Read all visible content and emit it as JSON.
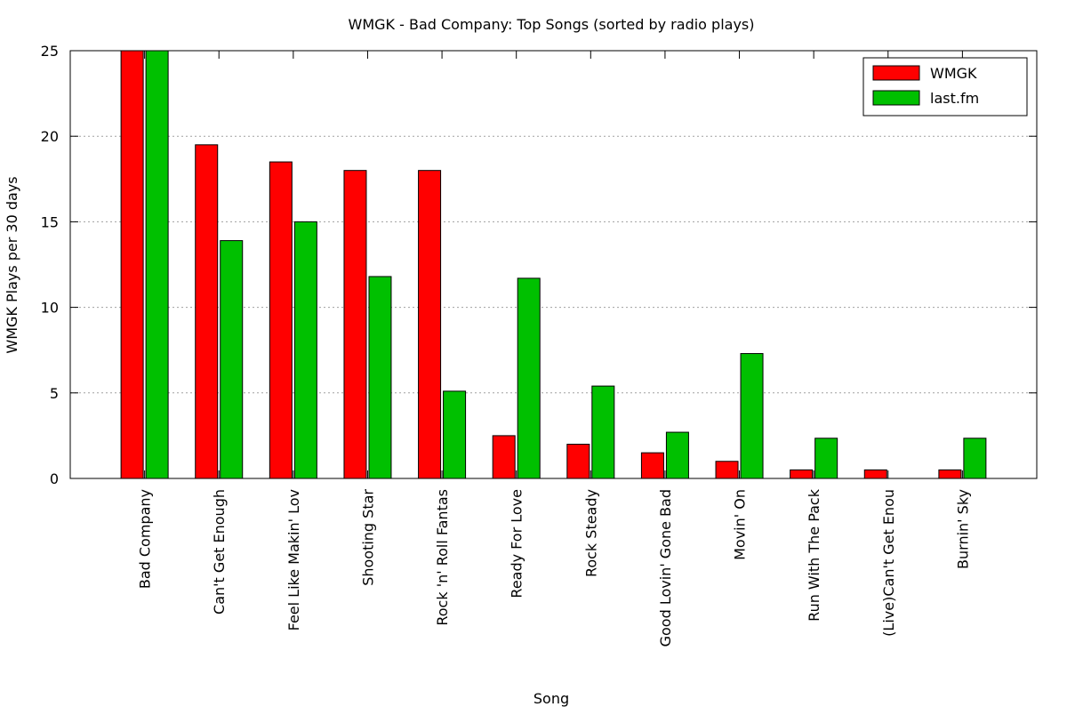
{
  "chart_data": {
    "type": "bar",
    "title": "WMGK - Bad Company: Top Songs (sorted by radio plays)",
    "xlabel": "Song",
    "ylabel": "WMGK Plays per 30 days",
    "ylim": [
      0,
      25
    ],
    "yticks": [
      0,
      5,
      10,
      15,
      20,
      25
    ],
    "grid": "horizontal dashed",
    "legend_position": "top-right",
    "categories": [
      "Bad Company",
      "Can't Get Enough",
      "Feel Like Makin' Lov",
      "Shooting Star",
      "Rock 'n' Roll Fantas",
      "Ready For Love",
      "Rock Steady",
      "Good Lovin' Gone Bad",
      "Movin' On",
      "Run With The Pack",
      "(Live)Can't Get Enou",
      "Burnin' Sky"
    ],
    "series": [
      {
        "name": "WMGK",
        "color": "#ff0000",
        "values": [
          25,
          19.5,
          18.5,
          18,
          18,
          2.5,
          2,
          1.5,
          1,
          0.5,
          0.5,
          0.5
        ]
      },
      {
        "name": "last.fm",
        "color": "#00c000",
        "values": [
          25,
          13.9,
          15,
          11.8,
          5.1,
          11.7,
          5.4,
          2.7,
          7.3,
          2.35,
          0,
          2.35
        ]
      }
    ]
  }
}
